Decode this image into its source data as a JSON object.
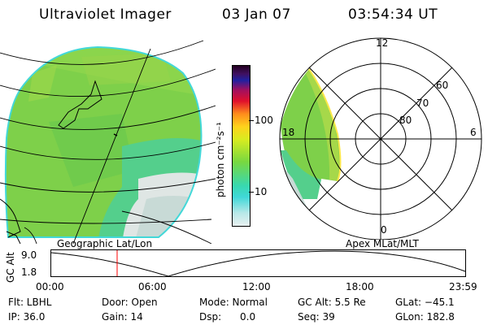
{
  "header": {
    "instrument": "Ultraviolet Imager",
    "date": "03 Jan 07",
    "time": "03:54:34 UT"
  },
  "colorbar": {
    "label": "photon cm⁻²s⁻¹",
    "ticks": [
      "100",
      "10"
    ]
  },
  "polar_plot": {
    "hour_labels": [
      "12",
      "18",
      "6",
      "0"
    ],
    "lat_labels": [
      "60",
      "70",
      "80"
    ]
  },
  "map_labels": {
    "left": "Geographic Lat/Lon",
    "right": "Apex MLat/MLT"
  },
  "alt_plot": {
    "ylabel": "GC Alt",
    "yticks": [
      "9.0",
      "1.8"
    ],
    "xticks": [
      "00:00",
      "06:00",
      "12:00",
      "18:00",
      "23:59"
    ],
    "marker_time": "03:54:34"
  },
  "info": {
    "flt": "Flt: LBHL",
    "ip": "IP: 36.0",
    "door": "Door: Open",
    "gain": "Gain: 14",
    "mode": "Mode: Normal",
    "dsp": "Dsp:      0.0",
    "gcalt": "GC Alt: 5.5 Re",
    "seq": "Seq: 39",
    "glat": "GLat: −45.1",
    "glon": "GLon: 182.8"
  },
  "colors": {
    "aurora_green": "#7ed04a",
    "cyan": "#42d8d8",
    "orbit_marker": "#ff0000"
  }
}
